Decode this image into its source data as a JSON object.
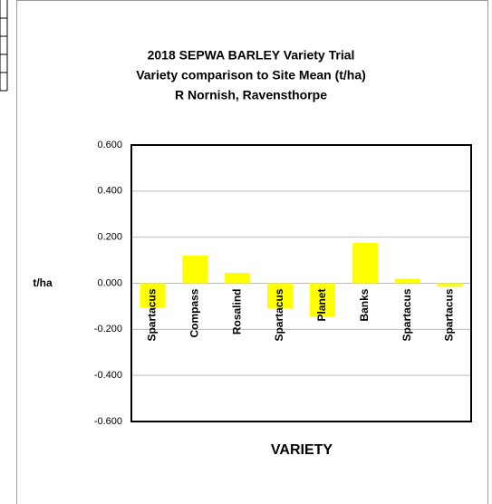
{
  "chart_data": {
    "type": "bar",
    "title": [
      "2018 SEPWA BARLEY Variety Trial",
      "Variety comparison to Site Mean (t/ha)",
      "R Nornish, Ravensthorpe"
    ],
    "xlabel": "VARIETY",
    "ylabel": "t/ha",
    "categories": [
      "Spartacus",
      "Compass",
      "Rosalind",
      "Spartacus",
      "Planet",
      "Banks",
      "Spartacus",
      "Spartacus"
    ],
    "values": [
      -0.105,
      0.12,
      0.045,
      -0.11,
      -0.145,
      0.175,
      0.02,
      -0.015
    ],
    "color": "#ffff00",
    "ylim": [
      -0.6,
      0.6
    ],
    "yticks": [
      {
        "value": -0.6,
        "label": "-0.600"
      },
      {
        "value": -0.4,
        "label": "-0.400"
      },
      {
        "value": -0.2,
        "label": "-0.200"
      },
      {
        "value": 0,
        "label": "0.000"
      },
      {
        "value": 0.2,
        "label": "0.200"
      },
      {
        "value": 0.4,
        "label": "0.400"
      },
      {
        "value": 0.6,
        "label": "0.600"
      }
    ],
    "grid": true
  }
}
